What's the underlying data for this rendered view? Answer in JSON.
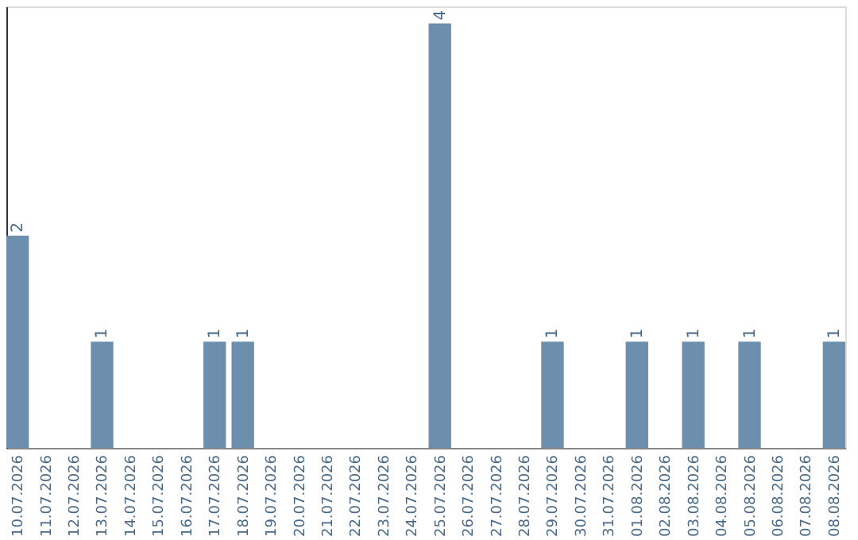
{
  "chart_data": {
    "type": "bar",
    "categories": [
      "10.07.2026",
      "11.07.2026",
      "12.07.2026",
      "13.07.2026",
      "14.07.2026",
      "15.07.2026",
      "16.07.2026",
      "17.07.2026",
      "18.07.2026",
      "19.07.2026",
      "20.07.2026",
      "21.07.2026",
      "22.07.2026",
      "23.07.2026",
      "24.07.2026",
      "25.07.2026",
      "26.07.2026",
      "27.07.2026",
      "28.07.2026",
      "29.07.2026",
      "30.07.2026",
      "31.07.2026",
      "01.08.2026",
      "02.08.2026",
      "03.08.2026",
      "04.08.2026",
      "05.08.2026",
      "06.08.2026",
      "07.08.2026",
      "08.08.2026"
    ],
    "values": [
      2,
      0,
      0,
      1,
      0,
      0,
      0,
      1,
      1,
      0,
      0,
      0,
      0,
      0,
      0,
      4,
      0,
      0,
      0,
      1,
      0,
      0,
      1,
      0,
      1,
      0,
      1,
      0,
      0,
      1
    ],
    "value_labels": [
      "2",
      null,
      null,
      "1",
      null,
      null,
      null,
      "1",
      "1",
      null,
      null,
      null,
      null,
      null,
      null,
      "4",
      null,
      null,
      null,
      "1",
      null,
      null,
      "1",
      null,
      "1",
      null,
      "1",
      null,
      null,
      "1"
    ],
    "color": "#6d8fae",
    "grid": false,
    "tick_labels": "x"
  }
}
